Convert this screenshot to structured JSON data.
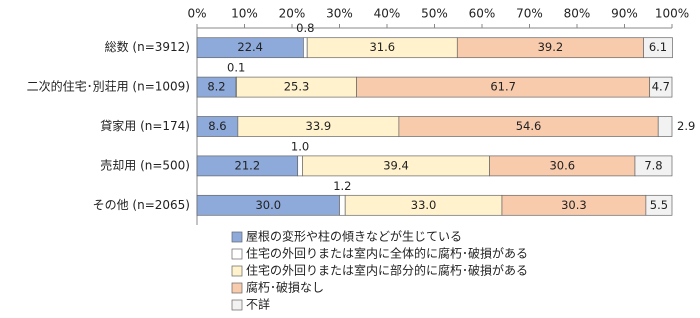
{
  "chart_data": {
    "type": "stacked-barh",
    "categories": [
      "総数 (n=3912)",
      "二次的住宅･別荘用 (n=1009)",
      "貸家用 (n=174)",
      "売却用 (n=500)",
      "その他 (n=2065)"
    ],
    "series": [
      {
        "name": "屋根の変形や柱の傾きなどが生じている",
        "color": "#8eaadb",
        "values": [
          22.4,
          8.2,
          8.6,
          21.2,
          30.0
        ],
        "value_labels": [
          "22.4",
          "8.2",
          "8.6",
          "21.2",
          "30.0"
        ]
      },
      {
        "name": "住宅の外回りまたは室内に全体的に腐朽･破損がある",
        "color": "#ffffff",
        "values": [
          0.8,
          0.1,
          0,
          1.0,
          1.2
        ],
        "value_labels": [
          "0.8",
          "0.1",
          null,
          "1.0",
          "1.2"
        ]
      },
      {
        "name": "住宅の外回りまたは室内に部分的に腐朽･破損がある",
        "color": "#fff2cc",
        "values": [
          31.6,
          25.3,
          33.9,
          39.4,
          33.0
        ],
        "value_labels": [
          "31.6",
          "25.3",
          "33.9",
          "39.4",
          "33.0"
        ]
      },
      {
        "name": "腐朽･破損なし",
        "color": "#f8cbad",
        "values": [
          39.2,
          61.7,
          54.6,
          30.6,
          30.3
        ],
        "value_labels": [
          "39.2",
          "61.7",
          "54.6",
          "30.6",
          "30.3"
        ]
      },
      {
        "name": "不詳",
        "color": "#f2f2f2",
        "values": [
          6.1,
          4.7,
          2.9,
          7.8,
          5.5
        ],
        "value_labels": [
          "6.1",
          "4.7",
          "2.9",
          "7.8",
          "5.5"
        ]
      }
    ],
    "xlim": [
      0,
      100
    ],
    "xticks": [
      {
        "value": 0,
        "label": "0%"
      },
      {
        "value": 10,
        "label": "10%"
      },
      {
        "value": 20,
        "label": "20%"
      },
      {
        "value": 30,
        "label": "30%"
      },
      {
        "value": 40,
        "label": "40%"
      },
      {
        "value": 50,
        "label": "50%"
      },
      {
        "value": 60,
        "label": "60%"
      },
      {
        "value": 70,
        "label": "70%"
      },
      {
        "value": 80,
        "label": "80%"
      },
      {
        "value": 90,
        "label": "90%"
      },
      {
        "value": 100,
        "label": "100%"
      }
    ]
  }
}
